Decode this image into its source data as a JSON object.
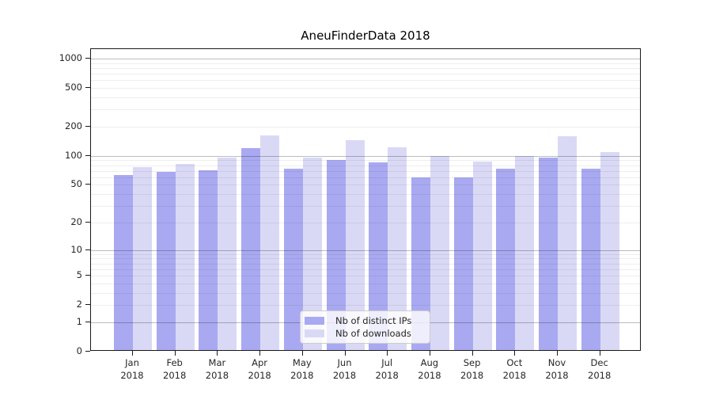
{
  "chart_data": {
    "type": "bar",
    "title": "AneuFinderData 2018",
    "categories": [
      "Jan",
      "Feb",
      "Mar",
      "Apr",
      "May",
      "Jun",
      "Jul",
      "Aug",
      "Sep",
      "Oct",
      "Nov",
      "Dec"
    ],
    "year": "2018",
    "series": [
      {
        "name": "Nb of distinct IPs",
        "color": "#a9a9f1",
        "values": [
          61,
          66,
          69,
          116,
          71,
          88,
          83,
          58,
          58,
          71,
          93,
          71
        ]
      },
      {
        "name": "Nb of downloads",
        "color": "#d9d9f6",
        "values": [
          74,
          80,
          93,
          156,
          93,
          140,
          118,
          96,
          84,
          96,
          155,
          106
        ]
      }
    ],
    "y_axis": {
      "scale": "log1p",
      "tick_values": [
        0,
        1,
        2,
        5,
        10,
        20,
        50,
        100,
        200,
        500,
        1000
      ],
      "major_grid_values": [
        1,
        10,
        100,
        1000
      ],
      "minor_grid_multipliers": [
        2,
        3,
        4,
        5,
        6,
        7,
        8,
        9
      ],
      "ylim": [
        0,
        1240
      ]
    },
    "legend": {
      "position": "lower-center",
      "entries": [
        "Nb of distinct IPs",
        "Nb of downloads"
      ]
    },
    "grid": "on",
    "xlabel": "",
    "ylabel": ""
  }
}
